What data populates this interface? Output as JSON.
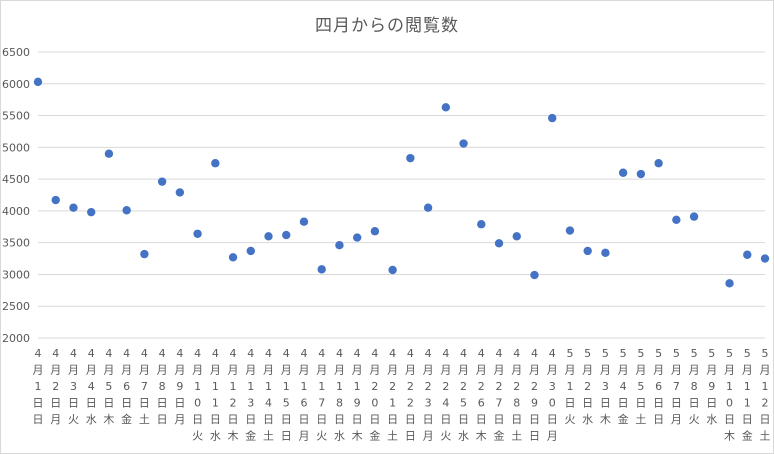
{
  "chart_data": {
    "type": "scatter",
    "title": "四月からの閲覧数",
    "xlabel": "",
    "ylabel": "",
    "ylim": [
      2000,
      6500
    ],
    "ytick_step": 500,
    "yticks": [
      "2000",
      "2500",
      "3000",
      "3500",
      "4000",
      "4500",
      "5000",
      "5500",
      "6000",
      "6500"
    ],
    "grid": true,
    "legend": "none",
    "marker_color": "#4472c4",
    "categories": [
      "4月1日日",
      "4月2日月",
      "4月3日火",
      "4月4日水",
      "4月5日木",
      "4月6日金",
      "4月7日土",
      "4月8日日",
      "4月9日月",
      "4月10日火",
      "4月11日水",
      "4月12日木",
      "4月13日金",
      "4月14日土",
      "4月15日日",
      "4月16日月",
      "4月17日火",
      "4月18日水",
      "4月19日木",
      "4月20日金",
      "4月21日土",
      "4月22日日",
      "4月23日月",
      "4月24日火",
      "4月25日水",
      "4月26日木",
      "4月27日金",
      "4月28日土",
      "4月29日日",
      "4月30日月",
      "5月1日火",
      "5月2日水",
      "5月3日木",
      "5月4日金",
      "5月5日土",
      "5月6日日",
      "5月7日月",
      "5月8日火",
      "5月9日水",
      "5月10日木",
      "5月11日金",
      "5月12日土"
    ],
    "values": [
      6030,
      4170,
      4050,
      3980,
      4900,
      4010,
      3320,
      4460,
      4290,
      3640,
      4750,
      3270,
      3370,
      3600,
      3620,
      3830,
      3080,
      3460,
      3580,
      3680,
      3070,
      4830,
      4050,
      5630,
      5060,
      3790,
      3490,
      3600,
      2990,
      5460,
      3690,
      3370,
      3340,
      4600,
      4580,
      4750,
      3860,
      3910,
      null,
      2860,
      3310,
      3250
    ]
  }
}
